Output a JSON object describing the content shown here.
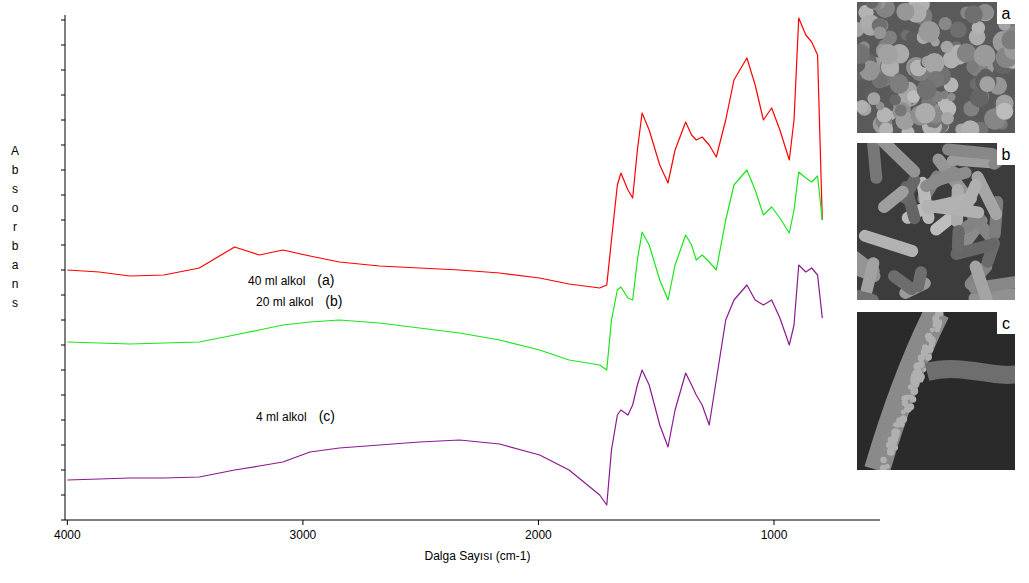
{
  "chart_data": {
    "type": "line",
    "x_label": "Dalga Sayısı (cm-1)",
    "y_label": "Absorbans",
    "x": [
      4000,
      3865,
      3735,
      3590,
      3440,
      3290,
      3185,
      3085,
      2970,
      2845,
      2675,
      2505,
      2335,
      2165,
      1995,
      1870,
      1740,
      1710,
      1690,
      1665,
      1650,
      1620,
      1600,
      1580,
      1560,
      1530,
      1485,
      1450,
      1420,
      1375,
      1350,
      1330,
      1305,
      1275,
      1245,
      1205,
      1170,
      1115,
      1080,
      1045,
      1010,
      975,
      935,
      915,
      895,
      865,
      840,
      815,
      795
    ],
    "xlim": [
      4010,
      550
    ],
    "xticks": [
      4000,
      3000,
      2000,
      1000
    ],
    "ylim": [
      0,
      505
    ],
    "yticks": [
      0,
      25,
      50,
      75,
      100,
      125,
      150,
      175,
      200,
      225,
      250,
      275,
      300,
      325,
      350,
      375,
      400,
      425,
      450,
      475,
      500
    ],
    "tick_labels": "x",
    "grid": false,
    "series": [
      {
        "name": "40 ml alkol",
        "label": "(a)",
        "color": "#ff0000",
        "values": [
          250,
          248,
          244,
          245,
          252,
          273,
          265,
          270,
          264,
          258,
          254,
          252,
          250,
          247,
          242,
          236,
          232,
          235,
          280,
          335,
          347,
          330,
          322,
          370,
          407,
          390,
          355,
          337,
          370,
          398,
          385,
          380,
          383,
          375,
          363,
          400,
          440,
          462,
          435,
          400,
          412,
          390,
          360,
          400,
          502,
          485,
          478,
          465,
          300
        ]
      },
      {
        "name": "20 ml alkol",
        "label": "(b)",
        "color": "#19e619",
        "values": [
          178,
          177,
          176,
          177,
          178,
          185,
          190,
          195,
          198,
          200,
          197,
          192,
          187,
          180,
          170,
          160,
          155,
          150,
          200,
          230,
          233,
          222,
          220,
          260,
          288,
          275,
          240,
          220,
          255,
          285,
          275,
          260,
          265,
          258,
          250,
          300,
          335,
          350,
          330,
          305,
          313,
          302,
          287,
          310,
          348,
          342,
          338,
          344,
          300
        ]
      },
      {
        "name": "4 ml alkol",
        "label": "(c)",
        "color": "#8a1a8f",
        "values": [
          40,
          41,
          42,
          42,
          43,
          50,
          54,
          58,
          68,
          72,
          75,
          78,
          80,
          76,
          65,
          50,
          25,
          15,
          70,
          105,
          110,
          105,
          115,
          135,
          150,
          135,
          95,
          73,
          110,
          147,
          135,
          125,
          115,
          95,
          140,
          200,
          220,
          235,
          220,
          215,
          220,
          202,
          175,
          195,
          255,
          248,
          252,
          245,
          202
        ]
      }
    ]
  },
  "images": [
    {
      "label": "a"
    },
    {
      "label": "b"
    },
    {
      "label": "c"
    }
  ]
}
